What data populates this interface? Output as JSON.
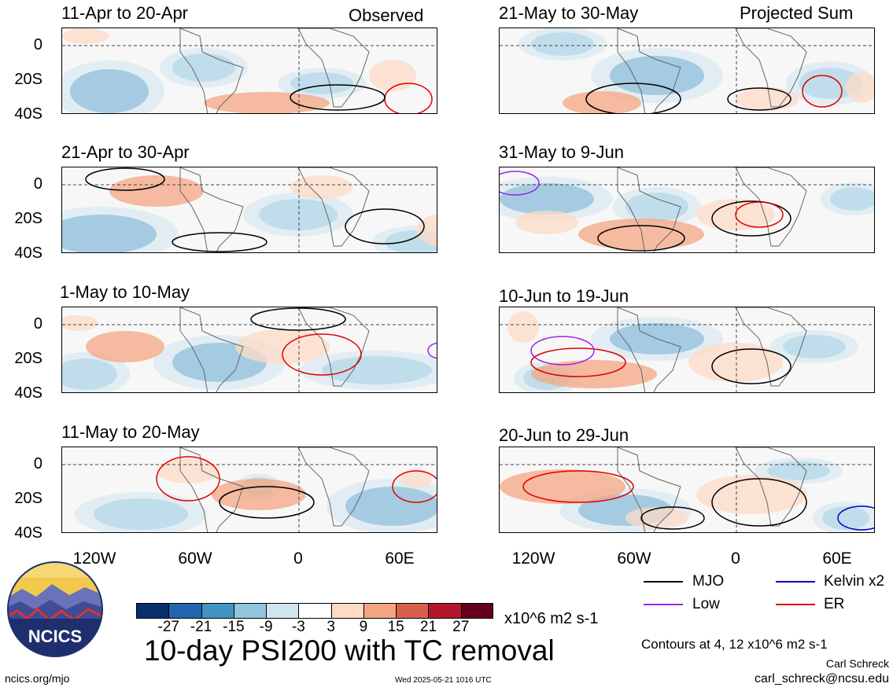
{
  "figure": {
    "title": "10-day PSI200 with TC removal",
    "units": "x10^6 m2 s-1",
    "contour_note": "Contours at 4, 12 x10^6 m2 s-1",
    "author": "Carl Schreck",
    "email": "carl_schreck@ncsu.edu",
    "site": "ncics.org/mjo",
    "timestamp": "Wed 2025-05-21 1016 UTC",
    "logo_text": "NCICS"
  },
  "columns": {
    "left_label": "Observed",
    "right_label": "Projected Sum"
  },
  "axes": {
    "y_ticks": [
      "0",
      "20S",
      "40S"
    ],
    "x_ticks": [
      "120W",
      "60W",
      "0",
      "60E"
    ]
  },
  "panels": {
    "left": [
      {
        "period": "11-Apr to 20-Apr"
      },
      {
        "period": "21-Apr to 30-Apr"
      },
      {
        "period": "1-May to 10-May"
      },
      {
        "period": "11-May to 20-May"
      }
    ],
    "right": [
      {
        "period": "21-May to 30-May"
      },
      {
        "period": "31-May to 9-Jun"
      },
      {
        "period": "10-Jun to 19-Jun"
      },
      {
        "period": "20-Jun to 29-Jun"
      }
    ]
  },
  "colorbar": {
    "colors": [
      "#08306b",
      "#2166ac",
      "#4393c3",
      "#92c5de",
      "#d1e5f0",
      "#ffffff",
      "#fddbc7",
      "#f4a582",
      "#d6604d",
      "#b2182b",
      "#67001f"
    ],
    "labels": [
      "-27",
      "-21",
      "-15",
      "-9",
      "-3",
      "3",
      "9",
      "15",
      "21",
      "27"
    ]
  },
  "legend": {
    "mjo": {
      "label": "MJO",
      "color": "#000000"
    },
    "kelvin": {
      "label": "Kelvin x2",
      "color": "#0000cc"
    },
    "low": {
      "label": "Low",
      "color": "#a020f0"
    },
    "er": {
      "label": "ER",
      "color": "#e00000"
    }
  }
}
